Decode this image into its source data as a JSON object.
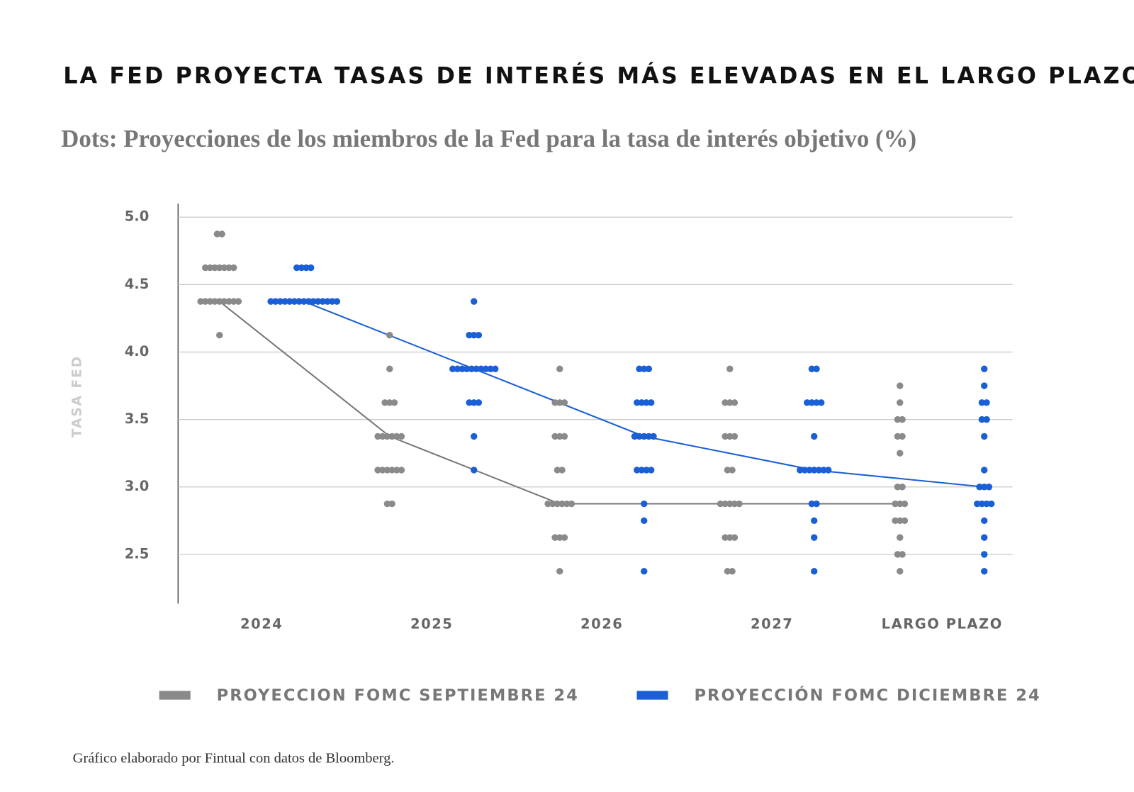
{
  "chart_data": {
    "type": "dot",
    "title": "LA FED PROYECTA TASAS DE INTERÉS MÁS ELEVADAS EN EL LARGO PLAZO",
    "subtitle": "Dots: Proyecciones de los miembros de la Fed para la tasa de interés objetivo (%)",
    "y_label": "TASA FED",
    "footnote": "Gráfico elaborado por Fintual con datos de  Bloomberg.",
    "categories": [
      "2024",
      "2025",
      "2026",
      "2027",
      "LARGO PLAZO"
    ],
    "ylim": [
      2.135,
      5.1
    ],
    "yticks": [
      2.5,
      {
        "value": 3,
        "label": "3.0"
      },
      3.5,
      {
        "value": 4,
        "label": "4.0"
      },
      4.5,
      {
        "value": 5,
        "label": "5.0"
      }
    ],
    "grid": true,
    "series": [
      {
        "name": "PROYECCION FOMC SEPTIEMBRE 24",
        "color": "#8a8a8a",
        "values": [
          [
            4.875,
            4.875,
            4.625,
            4.625,
            4.625,
            4.625,
            4.625,
            4.625,
            4.625,
            4.375,
            4.375,
            4.375,
            4.375,
            4.375,
            4.375,
            4.375,
            4.375,
            4.375,
            4.125
          ],
          [
            4.125,
            3.875,
            3.625,
            3.625,
            3.625,
            3.375,
            3.375,
            3.375,
            3.375,
            3.375,
            3.375,
            3.125,
            3.125,
            3.125,
            3.125,
            3.125,
            3.125,
            2.875,
            2.875
          ],
          [
            3.875,
            3.625,
            3.625,
            3.625,
            3.375,
            3.375,
            3.375,
            3.125,
            3.125,
            2.875,
            2.875,
            2.875,
            2.875,
            2.875,
            2.875,
            2.625,
            2.625,
            2.625,
            2.375
          ],
          [
            3.875,
            3.625,
            3.625,
            3.625,
            3.375,
            3.375,
            3.375,
            3.125,
            3.125,
            2.875,
            2.875,
            2.875,
            2.875,
            2.875,
            2.625,
            2.625,
            2.625,
            2.375,
            2.375
          ],
          [
            3.75,
            3.625,
            3.5,
            3.5,
            3.375,
            3.375,
            3.25,
            3.0,
            3.0,
            2.875,
            2.875,
            2.875,
            2.75,
            2.75,
            2.75,
            2.625,
            2.5,
            2.5,
            2.375
          ]
        ],
        "medians": [
          4.375,
          3.375,
          2.875,
          2.875,
          2.875
        ]
      },
      {
        "name": "PROYECCIÓN FOMC DICIEMBRE 24",
        "color": "#1a5fd6",
        "values": [
          [
            4.625,
            4.625,
            4.625,
            4.625,
            4.375,
            4.375,
            4.375,
            4.375,
            4.375,
            4.375,
            4.375,
            4.375,
            4.375,
            4.375,
            4.375,
            4.375,
            4.375,
            4.375,
            4.375
          ],
          [
            4.375,
            4.125,
            4.125,
            4.125,
            3.875,
            3.875,
            3.875,
            3.875,
            3.875,
            3.875,
            3.875,
            3.875,
            3.875,
            3.875,
            3.625,
            3.625,
            3.625,
            3.375,
            3.125
          ],
          [
            3.875,
            3.875,
            3.875,
            3.625,
            3.625,
            3.625,
            3.625,
            3.375,
            3.375,
            3.375,
            3.375,
            3.375,
            3.125,
            3.125,
            3.125,
            3.125,
            2.875,
            2.75,
            2.375
          ],
          [
            3.875,
            3.875,
            3.625,
            3.625,
            3.625,
            3.625,
            3.375,
            3.125,
            3.125,
            3.125,
            3.125,
            3.125,
            3.125,
            3.125,
            2.875,
            2.875,
            2.75,
            2.625,
            2.375
          ],
          [
            3.875,
            3.75,
            3.625,
            3.625,
            3.5,
            3.5,
            3.375,
            3.125,
            3.0,
            3.0,
            3.0,
            2.875,
            2.875,
            2.875,
            2.875,
            2.75,
            2.625,
            2.5,
            2.375
          ]
        ],
        "medians": [
          4.375,
          3.875,
          3.375,
          3.125,
          3.0
        ]
      }
    ]
  }
}
